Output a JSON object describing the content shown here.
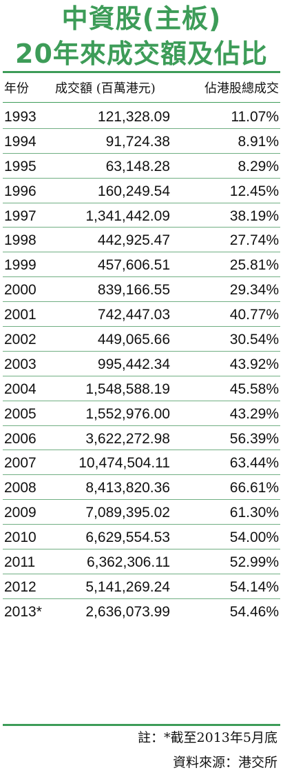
{
  "title_line1": "中資股(主板)",
  "title_line2": "20年來成交額及佔比",
  "headers": {
    "year": "年份",
    "volume": "成交額 (百萬港元)",
    "share": "佔港股總成交"
  },
  "footnote": "註：*截至2013年5月底",
  "source": "資料來源：港交所",
  "chart_data": {
    "type": "table",
    "title": "中資股(主板) 20年來成交額及佔比",
    "columns": [
      "年份",
      "成交額 (百萬港元)",
      "佔港股總成交"
    ],
    "rows": [
      {
        "year": "1993",
        "volume": "121,328.09",
        "share": "11.07%"
      },
      {
        "year": "1994",
        "volume": "91,724.38",
        "share": "8.91%"
      },
      {
        "year": "1995",
        "volume": "63,148.28",
        "share": "8.29%"
      },
      {
        "year": "1996",
        "volume": "160,249.54",
        "share": "12.45%"
      },
      {
        "year": "1997",
        "volume": "1,341,442.09",
        "share": "38.19%"
      },
      {
        "year": "1998",
        "volume": "442,925.47",
        "share": "27.74%"
      },
      {
        "year": "1999",
        "volume": "457,606.51",
        "share": "25.81%"
      },
      {
        "year": "2000",
        "volume": "839,166.55",
        "share": "29.34%"
      },
      {
        "year": "2001",
        "volume": "742,447.03",
        "share": "40.77%"
      },
      {
        "year": "2002",
        "volume": "449,065.66",
        "share": "30.54%"
      },
      {
        "year": "2003",
        "volume": "995,442.34",
        "share": "43.92%"
      },
      {
        "year": "2004",
        "volume": "1,548,588.19",
        "share": "45.58%"
      },
      {
        "year": "2005",
        "volume": "1,552,976.00",
        "share": "43.29%"
      },
      {
        "year": "2006",
        "volume": "3,622,272.98",
        "share": "56.39%"
      },
      {
        "year": "2007",
        "volume": "10,474,504.11",
        "share": "63.44%"
      },
      {
        "year": "2008",
        "volume": "8,413,820.36",
        "share": "66.61%"
      },
      {
        "year": "2009",
        "volume": "7,089,395.02",
        "share": "61.30%"
      },
      {
        "year": "2010",
        "volume": "6,629,554.53",
        "share": "54.00%"
      },
      {
        "year": "2011",
        "volume": "6,362,306.11",
        "share": "52.99%"
      },
      {
        "year": "2012",
        "volume": "5,141,269.24",
        "share": "54.14%"
      },
      {
        "year": "2013*",
        "volume": "2,636,073.99",
        "share": "54.46%"
      }
    ]
  },
  "colors": {
    "accent": "#3d9c58",
    "row_rule": "#6fae82"
  }
}
